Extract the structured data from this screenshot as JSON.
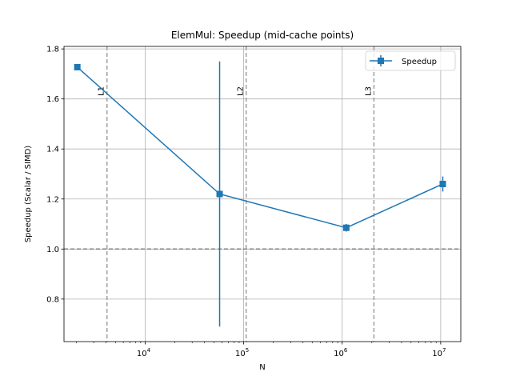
{
  "chart_data": {
    "type": "line",
    "title": "ElemMul: Speedup (mid-cache points)",
    "xlabel": "N",
    "ylabel": "Speedup (Scalar / SIMD)",
    "x_scale": "log",
    "xlim": [
      1500,
      16000000
    ],
    "ylim": [
      0.63,
      1.81
    ],
    "x_ticks": [
      {
        "value": 10000,
        "base": "10",
        "exp": "4"
      },
      {
        "value": 100000,
        "base": "10",
        "exp": "5"
      },
      {
        "value": 1000000,
        "base": "10",
        "exp": "6"
      },
      {
        "value": 10000000,
        "base": "10",
        "exp": "7"
      }
    ],
    "y_ticks": [
      0.8,
      1.0,
      1.2,
      1.4,
      1.6,
      1.8
    ],
    "y_tick_labels": [
      "0.8",
      "1.0",
      "1.2",
      "1.4",
      "1.6",
      "1.8"
    ],
    "grid": true,
    "legend": {
      "position": "top-right"
    },
    "series": [
      {
        "name": "Speedup",
        "color": "#1f77b4",
        "marker": "square",
        "points": [
          {
            "x": 2048,
            "y": 1.727,
            "err_low": 0.0,
            "err_high": 0.0
          },
          {
            "x": 57000,
            "y": 1.22,
            "err_low": 0.53,
            "err_high": 0.53
          },
          {
            "x": 1100000,
            "y": 1.085,
            "err_low": 0.015,
            "err_high": 0.015
          },
          {
            "x": 10500000,
            "y": 1.26,
            "err_low": 0.03,
            "err_high": 0.03
          }
        ]
      }
    ],
    "reference_lines": {
      "horizontal": [
        {
          "y": 1.0,
          "color": "#808080",
          "style": "dashed"
        }
      ],
      "vertical": [
        {
          "x": 4096,
          "label": "L1",
          "color": "#a0a0a0",
          "style": "dashed"
        },
        {
          "x": 106000,
          "label": "L2",
          "color": "#a0a0a0",
          "style": "dashed"
        },
        {
          "x": 2100000,
          "label": "L3",
          "color": "#a0a0a0",
          "style": "dashed"
        }
      ]
    }
  }
}
